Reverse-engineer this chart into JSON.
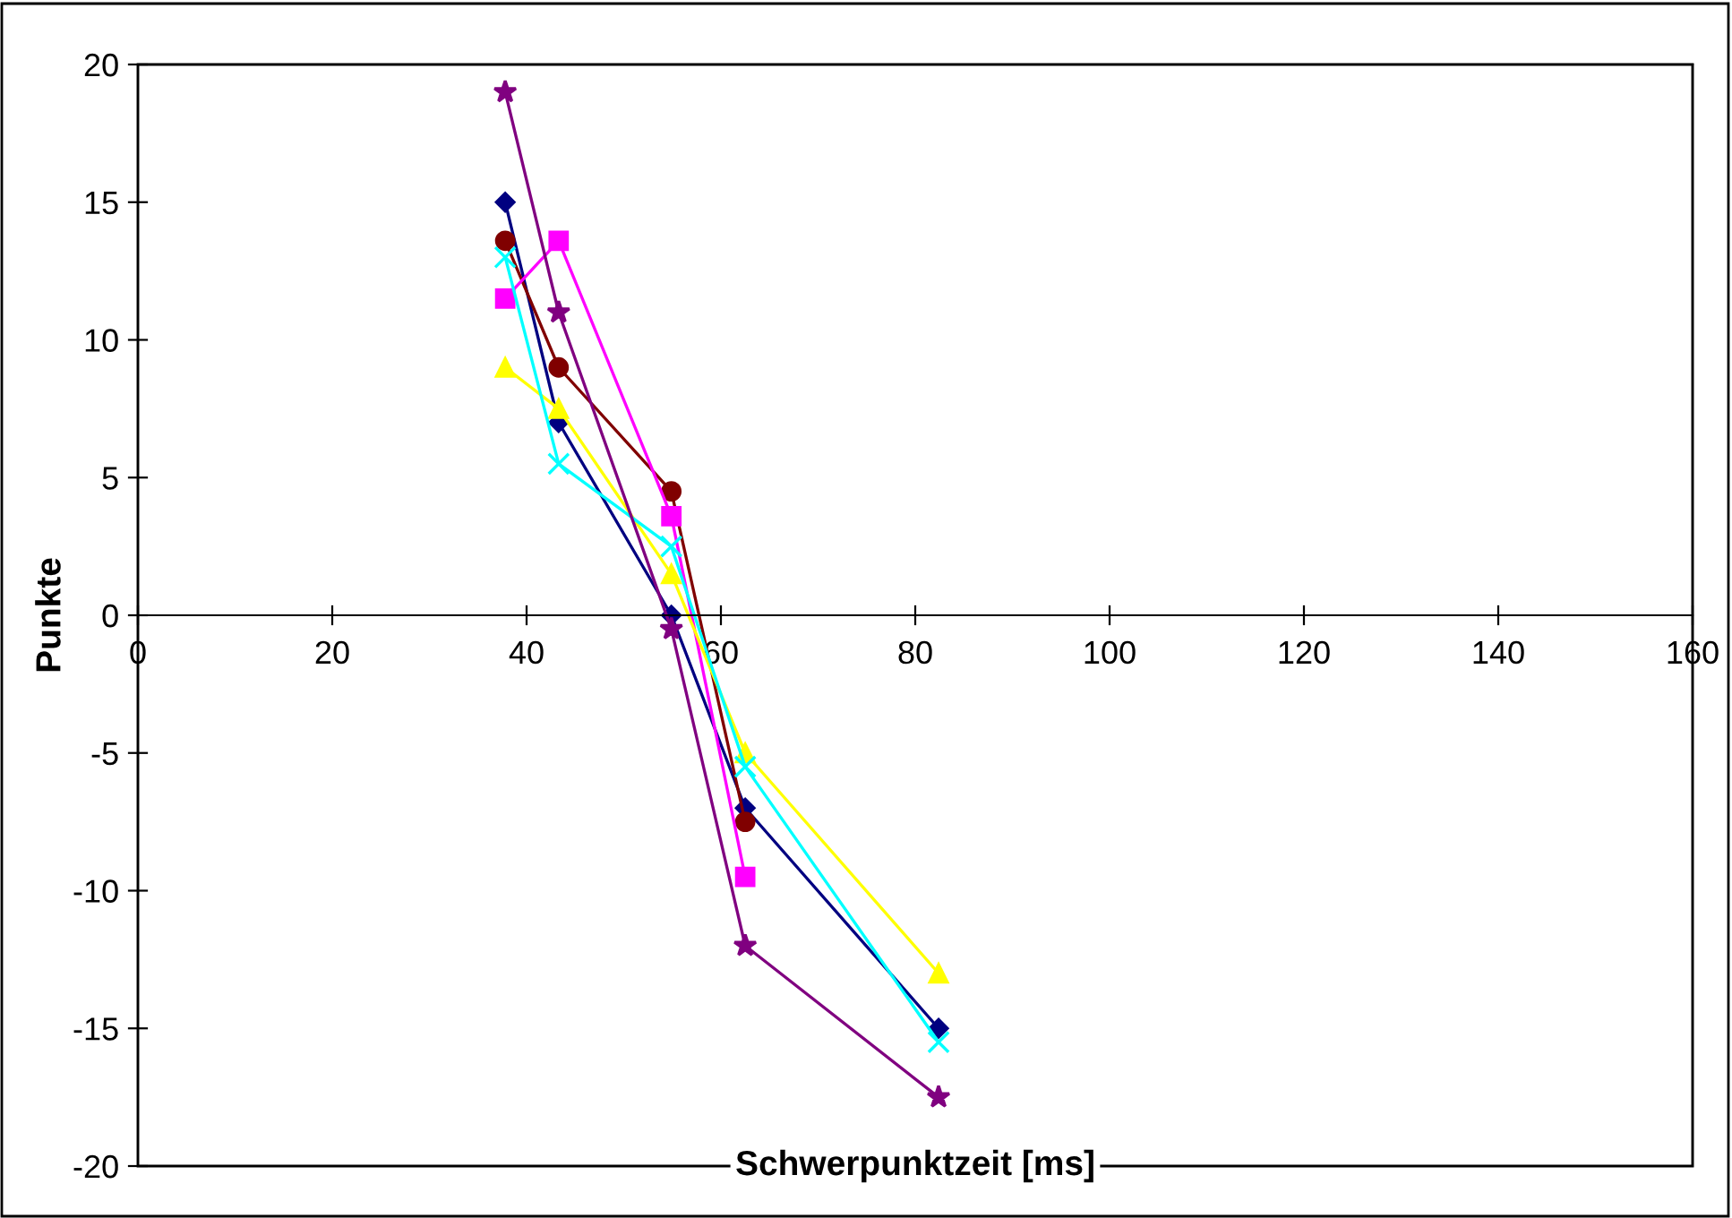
{
  "chart_data": {
    "type": "line",
    "xlabel": "Schwerpunktzeit [ms]",
    "ylabel": "Punkte",
    "x": [
      37.8,
      43.3,
      54.9,
      62.5,
      82.4
    ],
    "xlim": [
      0,
      160
    ],
    "xticks": [
      0,
      20,
      40,
      60,
      80,
      100,
      120,
      140,
      160
    ],
    "ylim": [
      -20,
      20
    ],
    "yticks": [
      -20,
      -15,
      -10,
      -5,
      0,
      5,
      10,
      15,
      20
    ],
    "grid": false,
    "legend": false,
    "line_style": "solid",
    "series": [
      {
        "color": "#000080",
        "marker": "diamond",
        "values": [
          15,
          7,
          0,
          -7,
          -15
        ]
      },
      {
        "color": "#800000",
        "marker": "circle",
        "values": [
          13.6,
          9,
          4.5,
          -7.5,
          null
        ]
      },
      {
        "color": "#ff00ff",
        "marker": "square",
        "values": [
          11.5,
          13.6,
          3.6,
          -9.5,
          null
        ]
      },
      {
        "color": "#ffff00",
        "marker": "triangle",
        "values": [
          9,
          7.5,
          1.5,
          -5,
          -13
        ]
      },
      {
        "color": "#00ffff",
        "marker": "cross",
        "values": [
          13,
          5.5,
          2.5,
          -5.5,
          -15.5
        ]
      },
      {
        "color": "#800080",
        "marker": "star",
        "values": [
          19,
          11,
          -0.5,
          -12,
          -17.5
        ]
      }
    ]
  }
}
